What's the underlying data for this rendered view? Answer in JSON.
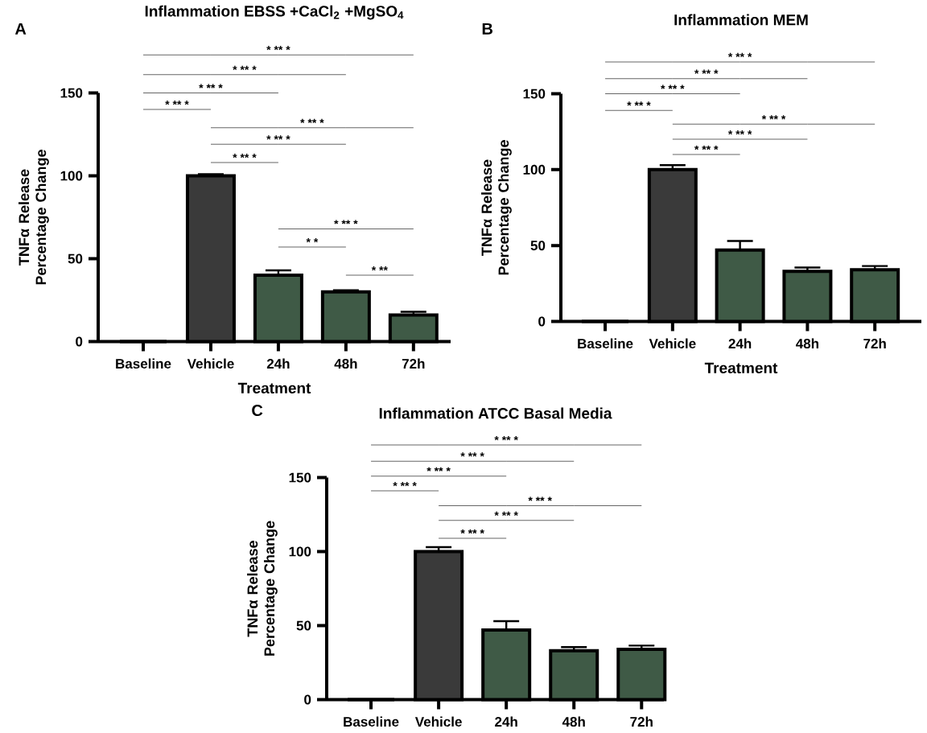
{
  "chart_data": [
    {
      "type": "bar",
      "title": "Inflammation EBSS +CaCl$_{2}$ +MgSO$_{4}$",
      "xlabel": "Treatment",
      "ylabel": "TNFα Release Percentage Change",
      "categories": [
        "Baseline",
        "Vehicle",
        "24h",
        "48h",
        "72h"
      ],
      "values": [
        0,
        100,
        40,
        30,
        16
      ],
      "errors": [
        null,
        1,
        3,
        1,
        2
      ],
      "colors": [
        "#3a3a3a",
        "#3a3a3a",
        "#3f5a46",
        "#3f5a46",
        "#3f5a46"
      ],
      "ylim": [
        0,
        150
      ],
      "yticks": [
        0,
        50,
        100,
        150
      ],
      "annotations": [
        "A",
        "* ** *",
        "* ** *",
        "* ** *",
        "* ** *",
        "* ** *",
        "* ** *",
        "* ** *",
        "* ** *",
        "*  *",
        "* **"
      ]
    },
    {
      "type": "bar",
      "title": "Inflammation MEM",
      "xlabel": "Treatment",
      "ylabel": "TNFα Release Percentage Change",
      "categories": [
        "Baseline",
        "Vehicle",
        "24h",
        "48h",
        "72h"
      ],
      "values": [
        0,
        100,
        47,
        33,
        34
      ],
      "errors": [
        null,
        3,
        6,
        2.5,
        2.5
      ],
      "colors": [
        "#3a3a3a",
        "#3a3a3a",
        "#3f5a46",
        "#3f5a46",
        "#3f5a46"
      ],
      "ylim": [
        0,
        150
      ],
      "yticks": [
        0,
        50,
        100,
        150
      ],
      "annotations": [
        "B",
        "* ** *",
        "* ** *",
        "* ** *",
        "* ** *",
        "* ** *",
        "* ** *",
        "* ** *"
      ]
    },
    {
      "type": "bar",
      "title": "Inflammation ATCC Basal Media",
      "ylabel": "TNFα Release Percentage Change",
      "categories": [
        "Baseline",
        "Vehicle",
        "24h",
        "48h",
        "72h"
      ],
      "values": [
        0,
        100,
        47,
        33,
        34
      ],
      "errors": [
        null,
        3,
        6,
        2.5,
        2.5
      ],
      "colors": [
        "#3a3a3a",
        "#3a3a3a",
        "#3f5a46",
        "#3f5a46",
        "#3f5a46"
      ],
      "ylim": [
        0,
        150
      ],
      "yticks": [
        0,
        50,
        100,
        150
      ],
      "annotations": [
        "C",
        "* ** *",
        "* ** *",
        "* ** *",
        "* ** *",
        "* ** *",
        "* ** *",
        "* ** *"
      ]
    }
  ]
}
